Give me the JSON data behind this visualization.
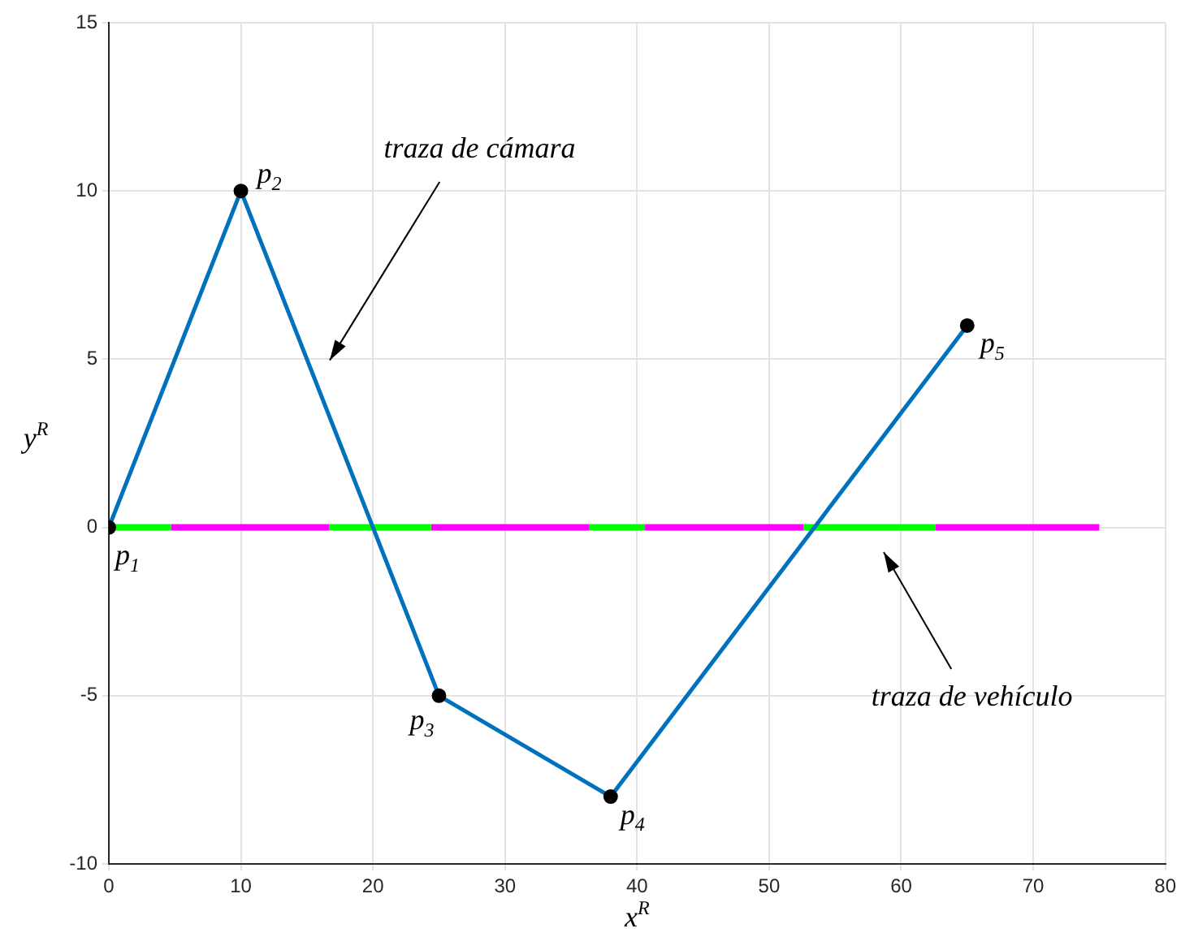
{
  "chart_data": {
    "type": "line",
    "xlabel": "x$^{R}$",
    "ylabel": "y$^{R}$",
    "xlim": [
      0,
      80
    ],
    "xticks": [
      0,
      10,
      20,
      30,
      40,
      50,
      60,
      70,
      80
    ],
    "ylim": [
      -10,
      15
    ],
    "yticks": [
      -10,
      -5,
      0,
      5,
      10,
      15
    ],
    "grid": true,
    "legend": false,
    "series": [
      {
        "color": "#0072bd",
        "x": [
          0,
          10,
          25,
          38,
          65
        ],
        "values": [
          0,
          10,
          -5,
          -8,
          6
        ],
        "marker": "none"
      },
      {
        "type": "scatter",
        "color": "#000000",
        "x": [
          0,
          10,
          25,
          38,
          65
        ],
        "values": [
          0,
          10,
          -5,
          -8,
          6
        ],
        "marker": "circle"
      },
      {
        "color": "#00ff00",
        "x": [
          0,
          4.7
        ],
        "values": [
          0,
          0
        ],
        "marker": "none"
      },
      {
        "color": "#ff00ff",
        "x": [
          4.7,
          16.7
        ],
        "values": [
          0,
          0
        ],
        "marker": "none"
      },
      {
        "color": "#00ff00",
        "x": [
          16.7,
          24.4
        ],
        "values": [
          0,
          0
        ],
        "marker": "none"
      },
      {
        "color": "#ff00ff",
        "x": [
          24.4,
          36.4
        ],
        "values": [
          0,
          0
        ],
        "marker": "none"
      },
      {
        "color": "#00ff00",
        "x": [
          36.4,
          40.6
        ],
        "values": [
          0,
          0
        ],
        "marker": "none"
      },
      {
        "color": "#ff00ff",
        "x": [
          40.6,
          52.6
        ],
        "values": [
          0,
          0
        ],
        "marker": "none"
      },
      {
        "color": "#00ff00",
        "x": [
          52.6,
          62.6
        ],
        "values": [
          0,
          0
        ],
        "marker": "none"
      },
      {
        "color": "#ff00ff",
        "x": [
          62.6,
          75
        ],
        "values": [
          0,
          0
        ],
        "marker": "none"
      }
    ],
    "annotations": [
      {
        "text": "p$_{1}$",
        "x": 0,
        "y": 0
      },
      {
        "text": "p$_{2}$",
        "x": 10,
        "y": 10
      },
      {
        "text": "p$_{3}$",
        "x": 25,
        "y": -5
      },
      {
        "text": "p$_{4}$",
        "x": 38,
        "y": -8
      },
      {
        "text": "p$_{5}$",
        "x": 65,
        "y": 6
      },
      "traza de cámara",
      "traza de vehículo"
    ]
  }
}
